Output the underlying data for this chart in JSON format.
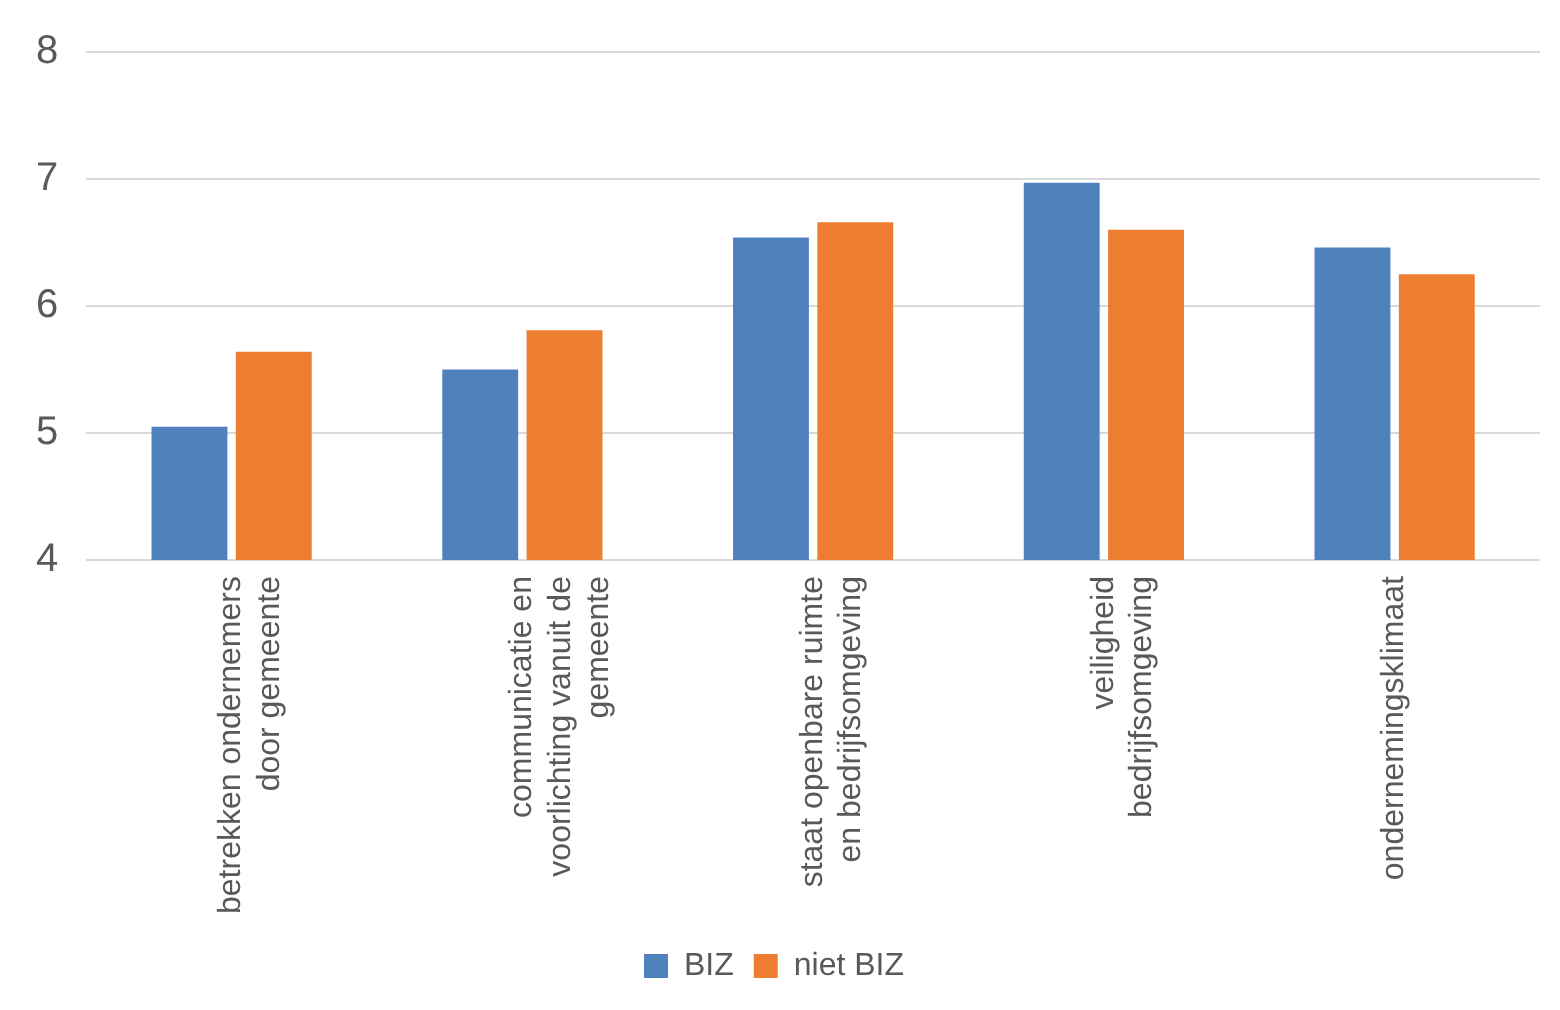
{
  "chart_data": {
    "type": "bar",
    "categories": [
      "betrekken ondernemers door gemeente",
      "communicatie en voorlichting vanuit de gemeente",
      "staat openbare ruimte en bedrijfsomgeving",
      "veiligheid bedrijfsomgeving",
      "ondernemingsklimaat"
    ],
    "series": [
      {
        "name": "BIZ",
        "color": "#4f81bd",
        "values": [
          5.05,
          5.5,
          6.54,
          6.97,
          6.46
        ]
      },
      {
        "name": "niet BIZ",
        "color": "#ed7d31",
        "values": [
          5.64,
          5.81,
          6.66,
          6.6,
          6.25
        ]
      }
    ],
    "ylim": [
      4,
      8
    ],
    "yticks": [
      4,
      5,
      6,
      7,
      8
    ],
    "grid": "y",
    "legend": "bottom"
  }
}
